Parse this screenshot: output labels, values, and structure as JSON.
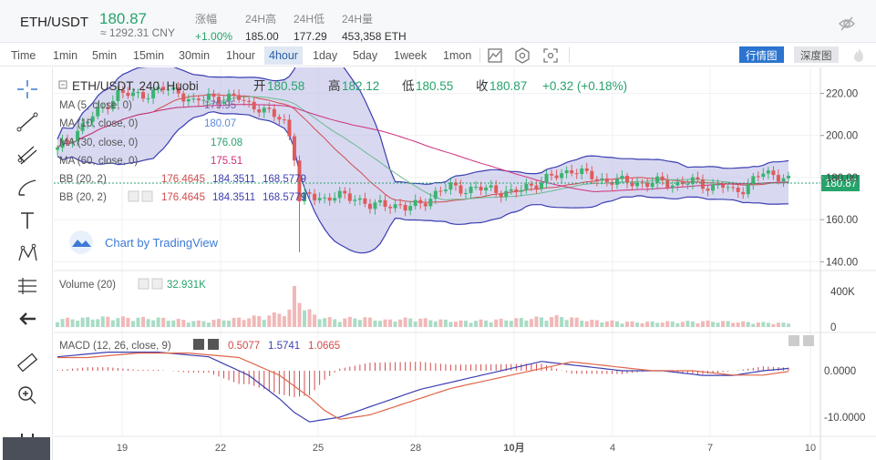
{
  "header": {
    "symbol": "ETH/USDT",
    "last_price": "180.87",
    "cny": "≈ 1292.31 CNY",
    "stats": [
      {
        "label": "涨幅",
        "value": "+1.00%",
        "up": true
      },
      {
        "label": "24H高",
        "value": "185.00",
        "up": false
      },
      {
        "label": "24H低",
        "value": "177.29",
        "up": false
      },
      {
        "label": "24H量",
        "value": "453,358 ETH",
        "up": false
      }
    ]
  },
  "toolbar": {
    "intervals": [
      "Time",
      "1min",
      "5min",
      "15min",
      "30min",
      "1hour",
      "4hour",
      "1day",
      "5day",
      "1week",
      "1mon"
    ],
    "active_interval": "4hour",
    "view_buttons": [
      "行情图",
      "深度图"
    ],
    "active_view": "行情图",
    "icons": [
      "indicator-icon",
      "settings-icon",
      "screenshot-icon",
      "flame-icon"
    ]
  },
  "left_tools": [
    "crosshair-icon",
    "trend-line-icon",
    "pitchfork-icon",
    "brush-icon",
    "text-icon",
    "pattern-icon",
    "measure-icon",
    "back-arrow-icon",
    "ruler-icon",
    "zoom-in-icon",
    "magnet-icon"
  ],
  "legend": {
    "title": "ETH/USDT, 240, Huobi",
    "ohlc_labels": [
      "开",
      "高",
      "低",
      "收"
    ],
    "ohlc_values": [
      "180.58",
      "182.12",
      "180.55",
      "180.87"
    ],
    "change": "+0.32 (+0.18%)",
    "ma_rows": [
      {
        "label": "MA (5, close, 0)",
        "value": "179.95",
        "color": "#7b5ea7"
      },
      {
        "label": "MA (10, close, 0)",
        "value": "180.07",
        "color": "#5b8bd9"
      },
      {
        "label": "MA (30, close, 0)",
        "value": "176.08",
        "color": "#27a36b"
      },
      {
        "label": "MA (60, close, 0)",
        "value": "175.51",
        "color": "#d02f7a"
      }
    ],
    "bb_rows": [
      {
        "label": "BB (20, 2)",
        "values": [
          "176.4645",
          "184.3511",
          "168.5779"
        ]
      },
      {
        "label": "BB (20, 2)",
        "values": [
          "176.4645",
          "184.3511",
          "168.5779"
        ]
      }
    ],
    "watermark": "Chart by TradingView"
  },
  "volume": {
    "label": "Volume (20)",
    "value": "32.931K"
  },
  "macd": {
    "label": "MACD (12, 26, close, 9)",
    "values": [
      "0.5077",
      "1.5741",
      "1.0665"
    ]
  },
  "price_tag": "180.87",
  "chart_data": {
    "type": "candlestick",
    "price_axis_ticks": [
      "220.00",
      "200.00",
      "180.00",
      "160.00",
      "140.00"
    ],
    "price_ylim": [
      138,
      228
    ],
    "volume_axis_ticks": [
      "400K",
      "0"
    ],
    "macd_axis_ticks": [
      "0.0000",
      "-10.0000"
    ],
    "x_tick_labels": [
      "19",
      "22",
      "25",
      "28",
      "10月",
      "4",
      "7",
      "10"
    ],
    "price_path": [
      [
        0,
        193
      ],
      [
        3,
        200
      ],
      [
        6,
        207
      ],
      [
        9,
        213
      ],
      [
        12,
        220
      ],
      [
        15,
        219
      ],
      [
        18,
        220
      ],
      [
        21,
        222
      ],
      [
        24,
        221
      ],
      [
        27,
        215
      ],
      [
        30,
        219
      ],
      [
        33,
        217
      ],
      [
        36,
        218
      ],
      [
        39,
        214
      ],
      [
        42,
        210
      ],
      [
        44,
        209
      ],
      [
        45,
        207
      ],
      [
        46,
        200
      ],
      [
        47,
        190
      ],
      [
        48,
        168
      ],
      [
        50,
        172
      ],
      [
        53,
        170
      ],
      [
        56,
        171
      ],
      [
        59,
        171
      ],
      [
        62,
        166
      ],
      [
        64,
        167
      ],
      [
        66,
        168
      ],
      [
        69,
        165
      ],
      [
        72,
        168
      ],
      [
        75,
        172
      ],
      [
        78,
        176
      ],
      [
        82,
        174
      ],
      [
        86,
        175
      ],
      [
        90,
        172
      ],
      [
        93,
        176
      ],
      [
        96,
        178
      ],
      [
        99,
        181
      ],
      [
        102,
        184
      ],
      [
        105,
        181
      ],
      [
        108,
        179
      ],
      [
        111,
        178
      ],
      [
        114,
        178
      ],
      [
        117,
        177
      ],
      [
        120,
        178
      ],
      [
        123,
        177
      ],
      [
        126,
        178
      ],
      [
        129,
        176
      ],
      [
        132,
        176
      ],
      [
        134,
        173
      ],
      [
        136,
        175
      ],
      [
        138,
        179
      ],
      [
        140,
        182
      ],
      [
        142,
        181
      ],
      [
        145,
        180.87
      ]
    ],
    "volume_path": [
      [
        0,
        80
      ],
      [
        10,
        100
      ],
      [
        20,
        90
      ],
      [
        28,
        60
      ],
      [
        36,
        90
      ],
      [
        42,
        120
      ],
      [
        46,
        170
      ],
      [
        47,
        380
      ],
      [
        49,
        210
      ],
      [
        51,
        120
      ],
      [
        55,
        80
      ],
      [
        60,
        100
      ],
      [
        65,
        70
      ],
      [
        70,
        90
      ],
      [
        80,
        60
      ],
      [
        90,
        80
      ],
      [
        100,
        110
      ],
      [
        105,
        70
      ],
      [
        115,
        50
      ],
      [
        130,
        60
      ],
      [
        145,
        40
      ]
    ],
    "macd_path": [
      [
        0,
        3
      ],
      [
        10,
        4
      ],
      [
        20,
        4
      ],
      [
        30,
        3
      ],
      [
        38,
        -1
      ],
      [
        44,
        -6
      ],
      [
        47,
        -9
      ],
      [
        50,
        -11
      ],
      [
        56,
        -10
      ],
      [
        64,
        -7
      ],
      [
        72,
        -4
      ],
      [
        80,
        -2
      ],
      [
        88,
        0
      ],
      [
        96,
        2
      ],
      [
        104,
        1
      ],
      [
        112,
        0
      ],
      [
        120,
        0
      ],
      [
        128,
        -1
      ],
      [
        134,
        -1
      ],
      [
        140,
        0
      ],
      [
        145,
        0.5
      ]
    ]
  }
}
